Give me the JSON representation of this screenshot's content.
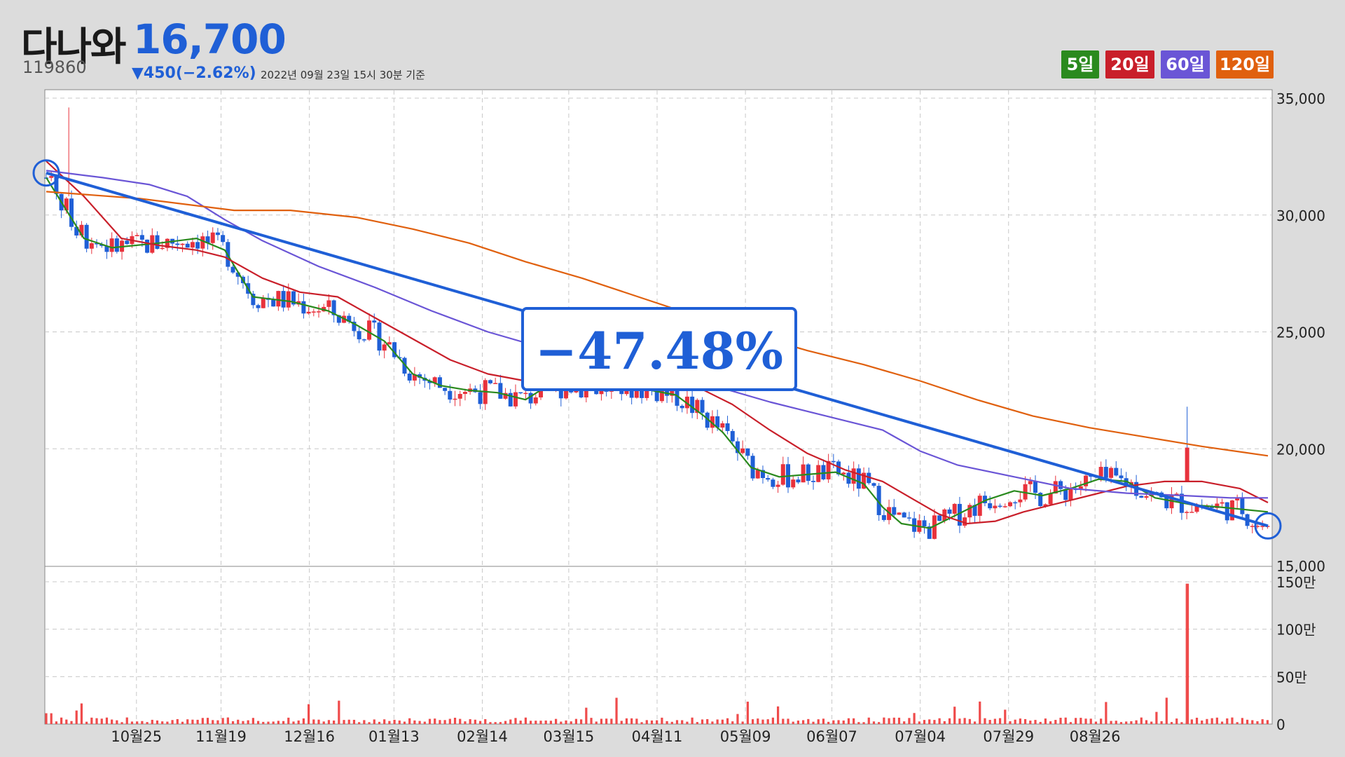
{
  "header": {
    "name": "다나와",
    "price": "16,700",
    "code": "119860",
    "change": "▼450(−2.62%)",
    "timestamp": "2022년 09월 23일 15시 30분 기준"
  },
  "legend": [
    {
      "label": "5일",
      "color": "#2a8a1e"
    },
    {
      "label": "20일",
      "color": "#c91f2a"
    },
    {
      "label": "60일",
      "color": "#6a55d6"
    },
    {
      "label": "120일",
      "color": "#e0600e"
    }
  ],
  "annotation": {
    "text": "−47.48%",
    "color": "#1f5fd6"
  },
  "colors": {
    "up": "#e8323c",
    "down": "#1f5fd6",
    "trend": "#1f5fd6"
  },
  "chart_data": {
    "type": "candlestick",
    "title": "",
    "x_ticks": [
      "10월25",
      "11월19",
      "12월16",
      "01월13",
      "02월14",
      "03월15",
      "04월11",
      "05월09",
      "06월07",
      "07월04",
      "07월29",
      "08월26"
    ],
    "price_ticks": [
      "35,000",
      "30,000",
      "25,000",
      "20,000",
      "15,000"
    ],
    "price_range": [
      15000,
      35000
    ],
    "volume_ticks": [
      "150만",
      "100만",
      "50만",
      "0"
    ],
    "volume_range_man": [
      0,
      150
    ],
    "trend_line": [
      {
        "date": "2021-09-24",
        "price": 31800
      },
      {
        "date": "2022-09-23",
        "price": 16700
      }
    ],
    "moving_averages": [
      {
        "name": "5일",
        "points": [
          [
            0,
            31600
          ],
          [
            20,
            29000
          ],
          [
            35,
            28600
          ],
          [
            60,
            28800
          ],
          [
            80,
            29000
          ],
          [
            95,
            28500
          ],
          [
            110,
            26500
          ],
          [
            130,
            26300
          ],
          [
            150,
            25900
          ],
          [
            165,
            25300
          ],
          [
            180,
            24600
          ],
          [
            195,
            23200
          ],
          [
            210,
            22700
          ],
          [
            225,
            22500
          ],
          [
            240,
            22400
          ],
          [
            255,
            22100
          ],
          [
            265,
            22600
          ],
          [
            280,
            22700
          ],
          [
            295,
            22600
          ],
          [
            315,
            22600
          ],
          [
            335,
            22300
          ],
          [
            350,
            21400
          ],
          [
            360,
            20700
          ],
          [
            375,
            19200
          ],
          [
            390,
            18800
          ],
          [
            405,
            18900
          ],
          [
            420,
            19000
          ],
          [
            435,
            18500
          ],
          [
            445,
            17500
          ],
          [
            455,
            16800
          ],
          [
            470,
            16600
          ],
          [
            485,
            17200
          ],
          [
            500,
            17800
          ],
          [
            515,
            18200
          ],
          [
            530,
            18000
          ],
          [
            545,
            18300
          ],
          [
            560,
            18700
          ],
          [
            575,
            18600
          ],
          [
            590,
            17900
          ],
          [
            610,
            17600
          ],
          [
            625,
            17500
          ],
          [
            650,
            17300
          ]
        ]
      },
      {
        "name": "20일",
        "points": [
          [
            0,
            32300
          ],
          [
            20,
            30800
          ],
          [
            40,
            29000
          ],
          [
            60,
            28700
          ],
          [
            80,
            28500
          ],
          [
            95,
            28200
          ],
          [
            115,
            27300
          ],
          [
            135,
            26700
          ],
          [
            155,
            26500
          ],
          [
            175,
            25600
          ],
          [
            195,
            24700
          ],
          [
            215,
            23800
          ],
          [
            235,
            23200
          ],
          [
            255,
            22900
          ],
          [
            275,
            22600
          ],
          [
            295,
            22600
          ],
          [
            320,
            22800
          ],
          [
            345,
            22700
          ],
          [
            365,
            21900
          ],
          [
            385,
            20800
          ],
          [
            405,
            19800
          ],
          [
            425,
            19100
          ],
          [
            445,
            18600
          ],
          [
            460,
            17900
          ],
          [
            475,
            17200
          ],
          [
            490,
            16800
          ],
          [
            505,
            16900
          ],
          [
            520,
            17300
          ],
          [
            535,
            17600
          ],
          [
            555,
            18000
          ],
          [
            575,
            18400
          ],
          [
            595,
            18600
          ],
          [
            615,
            18600
          ],
          [
            635,
            18300
          ],
          [
            650,
            17700
          ]
        ]
      },
      {
        "name": "60일",
        "points": [
          [
            0,
            31900
          ],
          [
            30,
            31600
          ],
          [
            55,
            31300
          ],
          [
            75,
            30800
          ],
          [
            95,
            29800
          ],
          [
            115,
            28900
          ],
          [
            145,
            27800
          ],
          [
            175,
            26900
          ],
          [
            205,
            25900
          ],
          [
            235,
            25000
          ],
          [
            265,
            24300
          ],
          [
            295,
            23700
          ],
          [
            325,
            23200
          ],
          [
            355,
            22700
          ],
          [
            385,
            22000
          ],
          [
            415,
            21400
          ],
          [
            445,
            20800
          ],
          [
            465,
            19900
          ],
          [
            485,
            19300
          ],
          [
            515,
            18800
          ],
          [
            545,
            18300
          ],
          [
            575,
            18100
          ],
          [
            605,
            18000
          ],
          [
            630,
            17900
          ],
          [
            650,
            17900
          ]
        ]
      },
      {
        "name": "120일",
        "points": [
          [
            0,
            31000
          ],
          [
            50,
            30700
          ],
          [
            100,
            30200
          ],
          [
            130,
            30200
          ],
          [
            165,
            29900
          ],
          [
            195,
            29400
          ],
          [
            225,
            28800
          ],
          [
            255,
            28000
          ],
          [
            285,
            27300
          ],
          [
            315,
            26500
          ],
          [
            345,
            25700
          ],
          [
            375,
            24900
          ],
          [
            405,
            24200
          ],
          [
            435,
            23600
          ],
          [
            465,
            22900
          ],
          [
            495,
            22100
          ],
          [
            525,
            21400
          ],
          [
            555,
            20900
          ],
          [
            585,
            20500
          ],
          [
            615,
            20100
          ],
          [
            650,
            19700
          ]
        ]
      }
    ],
    "volume_spike": {
      "date": "2022-08-12",
      "value_man": 148
    }
  }
}
